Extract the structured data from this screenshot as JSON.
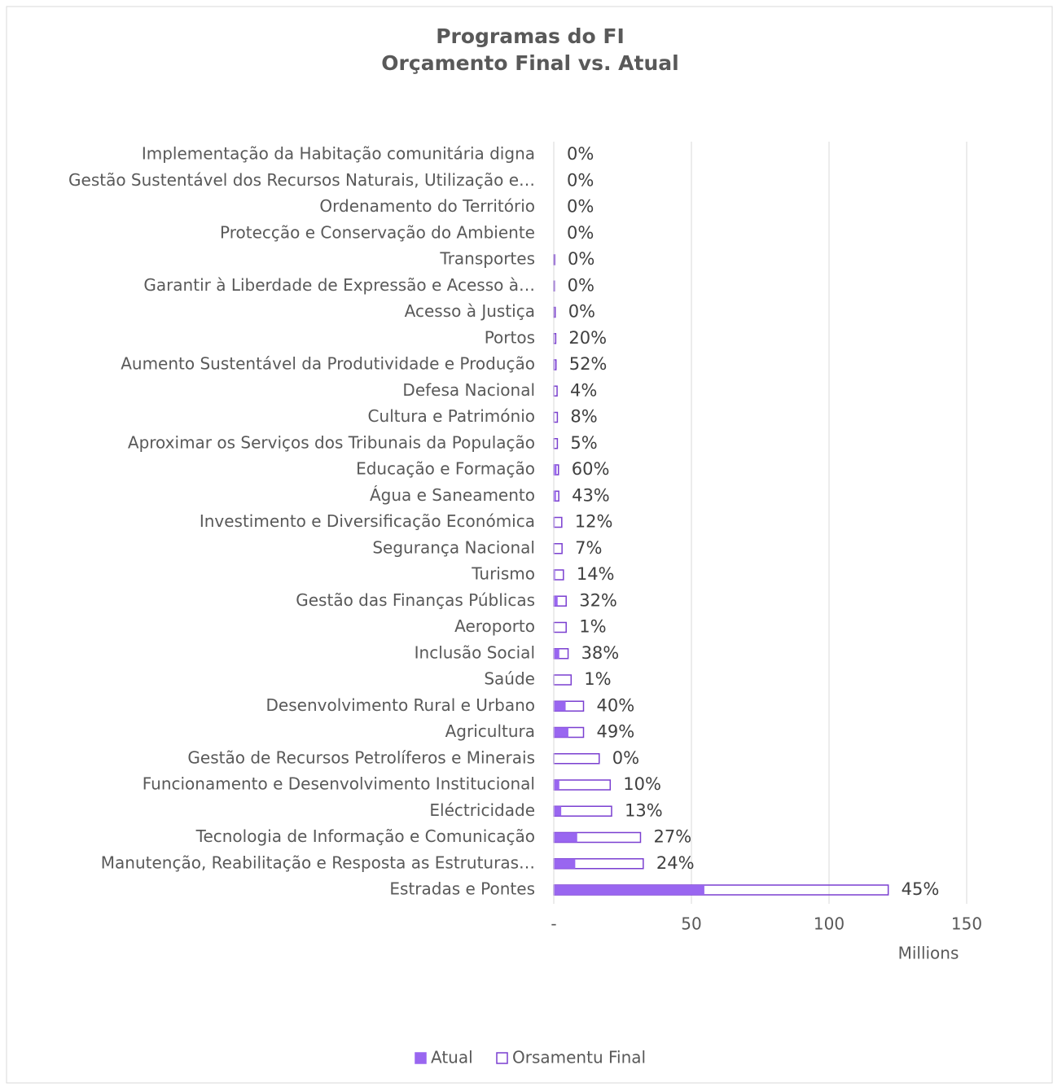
{
  "chart_data": {
    "type": "bar",
    "orientation": "horizontal",
    "overlap": true,
    "title": [
      "Programas do FI",
      "Orçamento Final vs. Atual"
    ],
    "categories": [
      "Implementação da Habitação comunitária digna",
      "Gestão Sustentável dos Recursos Naturais, Utilização e…",
      "Ordenamento do Território",
      "Protecção e Conservação do Ambiente",
      "Transportes",
      "Garantir à Liberdade de Expressão e Acesso à…",
      "Acesso à Justiça",
      "Portos",
      "Aumento Sustentável da Produtividade e Produção",
      "Defesa Nacional",
      "Cultura e Património",
      "Aproximar os Serviços dos Tribunais da População",
      "Educação e Formação",
      "Água e Saneamento",
      "Investimento e Diversificação Económica",
      "Segurança Nacional",
      "Turismo",
      "Gestão das Finanças Públicas",
      "Aeroporto",
      "Inclusão Social",
      "Saúde",
      "Desenvolvimento Rural e Urbano",
      "Agricultura",
      "Gestão de Recursos Petrolíferos e Minerais",
      "Funcionamento e Desenvolvimento Institucional",
      "Eléctricidade",
      "Tecnologia de Informação e Comunicação",
      "Manutenção, Reabilitação e Resposta as Estruturas…",
      "Estradas e Pontes"
    ],
    "series": [
      {
        "name": "Atual",
        "color": "#9966f0",
        "style": "filled",
        "values": [
          0,
          0,
          0,
          0,
          0,
          0,
          0,
          0.14,
          0.4,
          0.05,
          0.1,
          0.07,
          1.0,
          0.8,
          0.35,
          0.2,
          0.5,
          1.4,
          0.05,
          2.0,
          0.06,
          4.3,
          5.3,
          0,
          2.0,
          2.7,
          8.5,
          7.8,
          54.7
        ]
      },
      {
        "name": "Orsamentu Final",
        "color": "#7a3fd0",
        "style": "outline",
        "values": [
          0,
          0,
          0,
          0,
          0.3,
          0.2,
          0.5,
          0.7,
          0.8,
          1.2,
          1.3,
          1.3,
          1.7,
          1.8,
          2.9,
          3.0,
          3.5,
          4.5,
          4.5,
          5.2,
          6.3,
          10.8,
          10.8,
          16.5,
          20.5,
          21,
          31.5,
          32.5,
          121.5
        ],
        "value_labels": [
          "0%",
          "0%",
          "0%",
          "0%",
          "0%",
          "0%",
          "0%",
          "20%",
          "52%",
          "4%",
          "8%",
          "5%",
          "60%",
          "43%",
          "12%",
          "7%",
          "14%",
          "32%",
          "1%",
          "38%",
          "1%",
          "40%",
          "49%",
          "0%",
          "10%",
          "13%",
          "27%",
          "24%",
          "45%"
        ]
      }
    ],
    "xlim": [
      0,
      150
    ],
    "xticks": [
      {
        "value": 0,
        "label": "-"
      },
      50,
      100,
      150
    ],
    "xlabel": "Millions",
    "grid": true,
    "legend": "bottom"
  }
}
